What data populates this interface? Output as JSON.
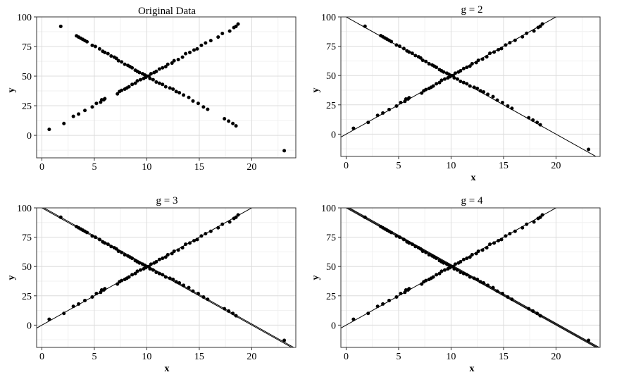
{
  "chart_data": [
    {
      "type": "scatter",
      "title": "Original Data",
      "xlabel": "",
      "ylabel": "y",
      "xlim": [
        -0.5,
        24.2
      ],
      "ylim": [
        -19,
        100
      ],
      "xticks": [
        0,
        5,
        10,
        15,
        20
      ],
      "yticks": [
        0,
        25,
        50,
        75,
        100
      ],
      "grid": true,
      "fit_lines": []
    },
    {
      "type": "scatter",
      "title": "g = 2",
      "xlabel": "x",
      "ylabel": "y",
      "xlim": [
        -0.5,
        24.2
      ],
      "ylim": [
        -19,
        100
      ],
      "xticks": [
        0,
        5,
        10,
        15,
        20
      ],
      "yticks": [
        0,
        25,
        50,
        75,
        100
      ],
      "grid": true,
      "fit_lines": [
        {
          "intercept": 0,
          "slope": 5
        },
        {
          "intercept": 100,
          "slope": -5
        }
      ]
    },
    {
      "type": "scatter",
      "title": "g = 3",
      "xlabel": "x",
      "ylabel": "y",
      "xlim": [
        -0.5,
        24.2
      ],
      "ylim": [
        -19,
        100
      ],
      "xticks": [
        0,
        5,
        10,
        15,
        20
      ],
      "yticks": [
        0,
        25,
        50,
        75,
        100
      ],
      "grid": true,
      "fit_lines": [
        {
          "intercept": 0,
          "slope": 5
        },
        {
          "intercept": 100,
          "slope": -5
        },
        {
          "intercept": 101,
          "slope": -5
        }
      ]
    },
    {
      "type": "scatter",
      "title": "g = 4",
      "xlabel": "x",
      "ylabel": "y",
      "xlim": [
        -0.5,
        24.2
      ],
      "ylim": [
        -19,
        100
      ],
      "xticks": [
        0,
        5,
        10,
        15,
        20
      ],
      "yticks": [
        0,
        25,
        50,
        75,
        100
      ],
      "grid": true,
      "fit_lines": [
        {
          "intercept": 0,
          "slope": 5
        },
        {
          "intercept": 100,
          "slope": -5
        },
        {
          "intercept": 100.8,
          "slope": -5
        },
        {
          "intercept": 101.6,
          "slope": -5
        }
      ]
    }
  ],
  "points": {
    "series": [
      {
        "x": [
          0.7,
          2.1,
          3.0,
          3.5,
          4.1,
          4.8,
          5.2,
          5.6,
          5.7,
          5.9,
          6.0,
          7.2,
          7.4,
          7.6,
          7.9,
          8.1,
          8.3,
          8.6,
          8.9,
          9.1,
          9.4,
          9.7,
          9.9,
          10.2,
          10.4,
          10.7,
          10.9,
          11.2,
          11.5,
          11.8,
          12.0,
          12.4,
          12.6,
          13.0,
          13.4,
          13.7,
          14.1,
          14.5,
          14.8,
          15.2,
          15.6,
          16.1,
          16.8,
          17.2,
          17.9,
          18.3,
          18.5,
          18.7
        ],
        "y": [
          5,
          10,
          16,
          18,
          21,
          24,
          27,
          28,
          30,
          30,
          31,
          35,
          37,
          38,
          39,
          40,
          41,
          43,
          44,
          46,
          47,
          48,
          49,
          50,
          52,
          53,
          54,
          56,
          57,
          58,
          60,
          61,
          63,
          64,
          66,
          69,
          70,
          72,
          73,
          76,
          78,
          80,
          83,
          86,
          88,
          91,
          92,
          94
        ]
      },
      {
        "x": [
          1.8,
          3.3,
          3.5,
          3.7,
          3.9,
          4.1,
          4.3,
          4.8,
          5.1,
          5.5,
          5.8,
          6.0,
          6.3,
          6.6,
          6.9,
          7.1,
          7.3,
          7.6,
          7.9,
          8.2,
          8.4,
          8.6,
          8.9,
          9.1,
          9.3,
          9.6,
          9.8,
          10.0,
          10.3,
          10.6,
          10.9,
          11.2,
          11.5,
          11.8,
          12.2,
          12.5,
          12.8,
          13.1,
          13.5,
          14.0,
          14.4,
          14.9,
          15.4,
          15.8,
          17.4,
          17.8,
          18.2,
          18.5,
          23.1
        ],
        "y": [
          92,
          84,
          83,
          82,
          81,
          80,
          79,
          76,
          75,
          73,
          71,
          70,
          69,
          67,
          66,
          65,
          63,
          62,
          60,
          59,
          58,
          57,
          55,
          54,
          53,
          52,
          51,
          50,
          48,
          47,
          45,
          44,
          43,
          41,
          40,
          39,
          37,
          36,
          34,
          32,
          29,
          27,
          24,
          22,
          14,
          12,
          10,
          8,
          -13
        ]
      }
    ]
  }
}
